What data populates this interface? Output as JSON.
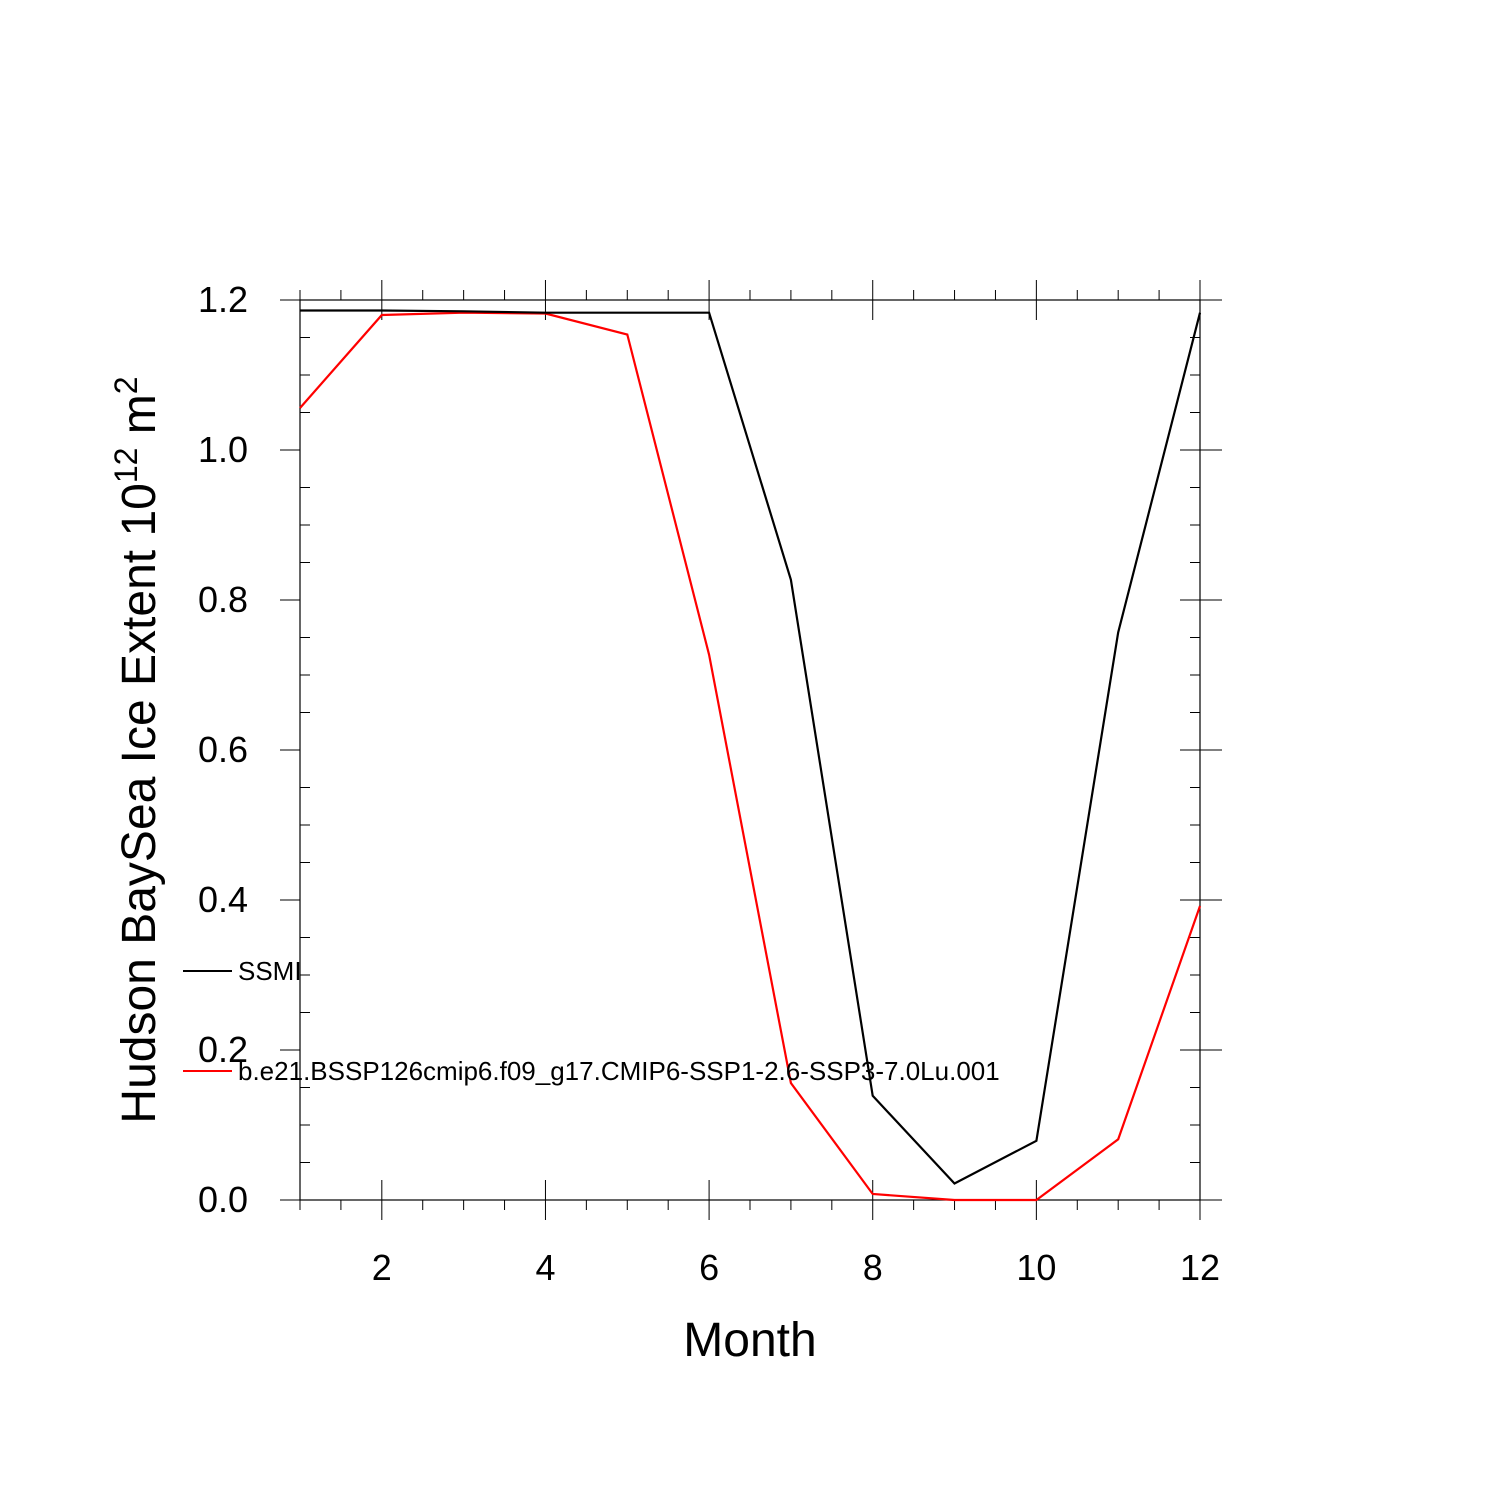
{
  "chart_data": {
    "type": "line",
    "title": "",
    "xlabel": "Month",
    "ylabel": {
      "prefix": "Hudson BaySea Ice Extent 10",
      "exponent": "12",
      "unit": " m",
      "unit_exponent": "2"
    },
    "xlim": [
      1,
      12
    ],
    "ylim": [
      0,
      1.2
    ],
    "x_ticks": [
      "2",
      "4",
      "6",
      "8",
      "10",
      "12"
    ],
    "y_ticks": [
      "0.0",
      "0.2",
      "0.4",
      "0.6",
      "0.8",
      "1.0",
      "1.2"
    ],
    "grid": false,
    "legend_position": "left, inside plot",
    "x": [
      1,
      2,
      3,
      4,
      5,
      6,
      7,
      8,
      9,
      10,
      11,
      12
    ],
    "series": [
      {
        "name": "SSMI",
        "color": "#000000",
        "values": [
          1.186,
          1.186,
          1.185,
          1.183,
          1.183,
          1.183,
          0.827,
          0.139,
          0.022,
          0.079,
          0.757,
          1.183
        ]
      },
      {
        "name": "b.e21.BSSP126cmip6.f09_g17.CMIP6-SSP1-2.6-SSP3-7.0Lu.001",
        "color": "#ff0000",
        "values": [
          1.056,
          1.18,
          1.183,
          1.182,
          1.154,
          0.727,
          0.156,
          0.008,
          0.0,
          0.0,
          0.081,
          0.392
        ]
      }
    ]
  }
}
